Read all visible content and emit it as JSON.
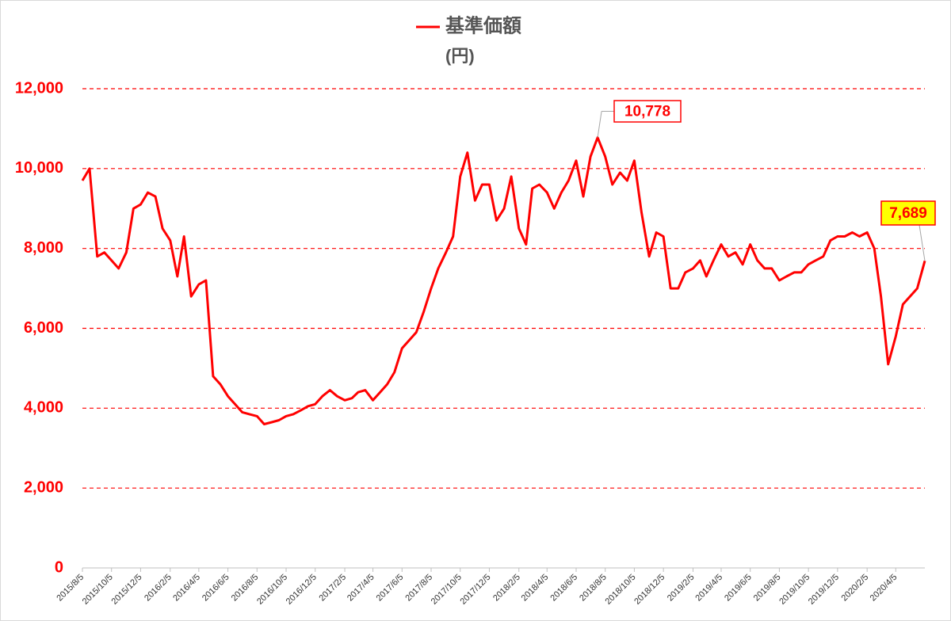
{
  "chart_data": {
    "type": "line",
    "title": "基準価額",
    "y_label": "(円)",
    "x": [
      "2015/8/5",
      "2015/8/20",
      "2015/9/5",
      "2015/9/20",
      "2015/10/5",
      "2015/10/20",
      "2015/11/5",
      "2015/11/20",
      "2015/12/5",
      "2015/12/20",
      "2016/1/5",
      "2016/1/20",
      "2016/2/5",
      "2016/2/20",
      "2016/3/5",
      "2016/3/20",
      "2016/4/5",
      "2016/4/20",
      "2016/5/5",
      "2016/5/20",
      "2016/6/5",
      "2016/6/20",
      "2016/7/5",
      "2016/7/20",
      "2016/8/5",
      "2016/8/20",
      "2016/9/5",
      "2016/9/20",
      "2016/10/5",
      "2016/10/20",
      "2016/11/5",
      "2016/11/20",
      "2016/12/5",
      "2016/12/20",
      "2017/1/5",
      "2017/1/20",
      "2017/2/5",
      "2017/2/20",
      "2017/3/5",
      "2017/3/20",
      "2017/4/5",
      "2017/4/20",
      "2017/5/5",
      "2017/5/20",
      "2017/6/5",
      "2017/6/20",
      "2017/7/5",
      "2017/7/20",
      "2017/8/5",
      "2017/8/20",
      "2017/9/5",
      "2017/9/20",
      "2017/10/5",
      "2017/10/20",
      "2017/11/5",
      "2017/11/20",
      "2017/12/5",
      "2017/12/20",
      "2018/1/5",
      "2018/1/20",
      "2018/2/5",
      "2018/2/20",
      "2018/3/5",
      "2018/3/20",
      "2018/4/5",
      "2018/4/20",
      "2018/5/5",
      "2018/5/20",
      "2018/6/5",
      "2018/6/20",
      "2018/7/5",
      "2018/7/20",
      "2018/8/5",
      "2018/8/20",
      "2018/9/5",
      "2018/9/20",
      "2018/10/5",
      "2018/10/20",
      "2018/11/5",
      "2018/11/20",
      "2018/12/5",
      "2018/12/20",
      "2019/1/5",
      "2019/1/20",
      "2019/2/5",
      "2019/2/20",
      "2019/3/5",
      "2019/3/20",
      "2019/4/5",
      "2019/4/20",
      "2019/5/5",
      "2019/5/20",
      "2019/6/5",
      "2019/6/20",
      "2019/7/5",
      "2019/7/20",
      "2019/8/5",
      "2019/8/20",
      "2019/9/5",
      "2019/9/20",
      "2019/10/5",
      "2019/10/20",
      "2019/11/5",
      "2019/11/20",
      "2019/12/5",
      "2019/12/20",
      "2020/1/5",
      "2020/1/20",
      "2020/2/5",
      "2020/2/20",
      "2020/3/5",
      "2020/3/20",
      "2020/4/5",
      "2020/4/20",
      "2020/5/5",
      "2020/5/20",
      "2020/6/5"
    ],
    "series": [
      {
        "name": "基準価額",
        "color": "#ff0000",
        "values": [
          9700,
          10000,
          7800,
          7900,
          7700,
          7500,
          7900,
          9000,
          9100,
          9400,
          9300,
          8500,
          8200,
          7300,
          8300,
          6800,
          7100,
          7200,
          4800,
          4600,
          4300,
          4100,
          3900,
          3850,
          3800,
          3600,
          3650,
          3700,
          3800,
          3850,
          3950,
          4050,
          4100,
          4300,
          4450,
          4300,
          4200,
          4250,
          4400,
          4450,
          4200,
          4400,
          4600,
          4900,
          5500,
          5700,
          5900,
          6400,
          7000,
          7500,
          7900,
          8300,
          9800,
          10400,
          9200,
          9600,
          9600,
          8700,
          9000,
          9800,
          8500,
          8100,
          9500,
          9600,
          9400,
          9000,
          9400,
          9700,
          10200,
          9300,
          10300,
          10778,
          10300,
          9600,
          9900,
          9700,
          10200,
          8900,
          7800,
          8400,
          8300,
          7000,
          7000,
          7400,
          7500,
          7700,
          7300,
          7700,
          8100,
          7800,
          7900,
          7600,
          8100,
          7700,
          7500,
          7500,
          7200,
          7300,
          7400,
          7400,
          7600,
          7700,
          7800,
          8200,
          8300,
          8300,
          8400,
          8300,
          8400,
          8000,
          6800,
          5100,
          5800,
          6600,
          6800,
          7000,
          7689
        ]
      }
    ],
    "xlim": [
      "2015/8/5",
      "2020/6/5"
    ],
    "xticks": [
      "2015/8/5",
      "2015/10/5",
      "2015/12/5",
      "2016/2/5",
      "2016/4/5",
      "2016/6/5",
      "2016/8/5",
      "2016/10/5",
      "2016/12/5",
      "2017/2/5",
      "2017/4/5",
      "2017/6/5",
      "2017/8/5",
      "2017/10/5",
      "2017/12/5",
      "2018/2/5",
      "2018/4/5",
      "2018/6/5",
      "2018/8/5",
      "2018/10/5",
      "2018/12/5",
      "2019/2/5",
      "2019/4/5",
      "2019/6/5",
      "2019/8/5",
      "2019/10/5",
      "2019/12/5",
      "2020/2/5",
      "2020/4/5"
    ],
    "ylim": [
      0,
      12000
    ],
    "yticks": [
      0,
      {
        "value": 2000,
        "label": "2,000"
      },
      {
        "value": 4000,
        "label": "4,000"
      },
      {
        "value": 6000,
        "label": "6,000"
      },
      {
        "value": 8000,
        "label": "8,000"
      },
      {
        "value": 10000,
        "label": "10,000"
      },
      {
        "value": 12000,
        "label": "12,000"
      }
    ],
    "grid": true,
    "annotations": [
      {
        "x": "2018/7/20",
        "value": 10778,
        "label": "10,778"
      },
      {
        "x": "2020/6/5",
        "value": 7689,
        "label": "7,689"
      }
    ]
  }
}
